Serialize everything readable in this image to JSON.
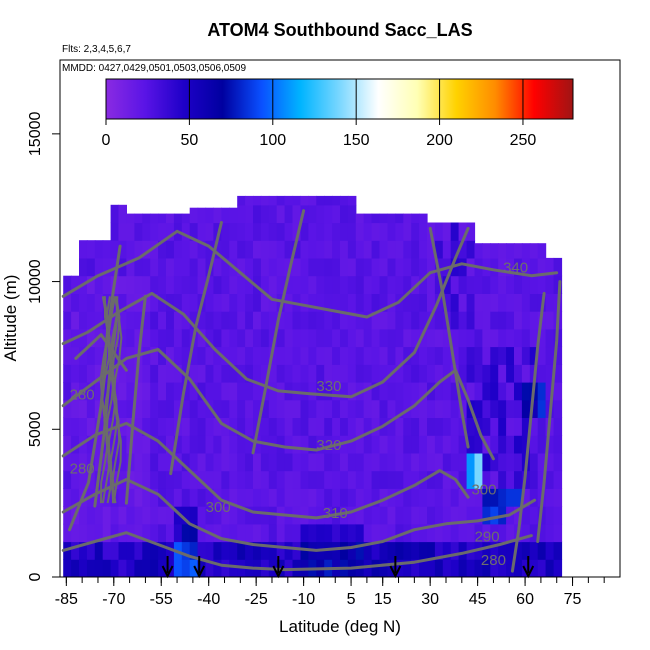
{
  "chart_data": {
    "type": "heatmap",
    "title": "ATOM4 Southbound Sacc_LAS",
    "subtitle_flights": "Flts: 2,3,4,5,6,7",
    "subtitle_dates": "MMDD: 0427,0429,0501,0503,0506,0509",
    "xlabel": "Latitude (deg N)",
    "ylabel": "Altitude (m)",
    "xlim": [
      -87,
      90
    ],
    "ylim": [
      0,
      17500
    ],
    "x_ticks": [
      -85,
      -70,
      -55,
      -40,
      -25,
      -10,
      5,
      15,
      30,
      45,
      60,
      75
    ],
    "y_ticks": [
      0,
      5000,
      10000,
      15000
    ],
    "colorbar": {
      "min": 0,
      "max": 280,
      "ticks": [
        0,
        50,
        100,
        150,
        200,
        250
      ],
      "colors": [
        "#8a2be2",
        "#5a14e6",
        "#1e00c8",
        "#0000a0",
        "#0a50ff",
        "#00b4ff",
        "#7ad7ff",
        "#ffffff",
        "#ffffb4",
        "#ffd200",
        "#ff8c00",
        "#ff0000",
        "#a01414"
      ]
    },
    "contour_labels": [
      {
        "text": "340",
        "x": 57,
        "y": 10300
      },
      {
        "text": "330",
        "x": -2,
        "y": 6300
      },
      {
        "text": "320",
        "x": -2,
        "y": 4300
      },
      {
        "text": "310",
        "x": 0,
        "y": 2000
      },
      {
        "text": "300",
        "x": -37,
        "y": 2200
      },
      {
        "text": "300",
        "x": 47,
        "y": 2800
      },
      {
        "text": "290",
        "x": 48,
        "y": 1200
      },
      {
        "text": "280",
        "x": -80,
        "y": 6000
      },
      {
        "text": "280",
        "x": -80,
        "y": 3500
      },
      {
        "text": "280",
        "x": 50,
        "y": 400
      }
    ],
    "profile_markers_lat": [
      -53,
      -43,
      -18,
      19,
      61
    ],
    "grid": false
  }
}
